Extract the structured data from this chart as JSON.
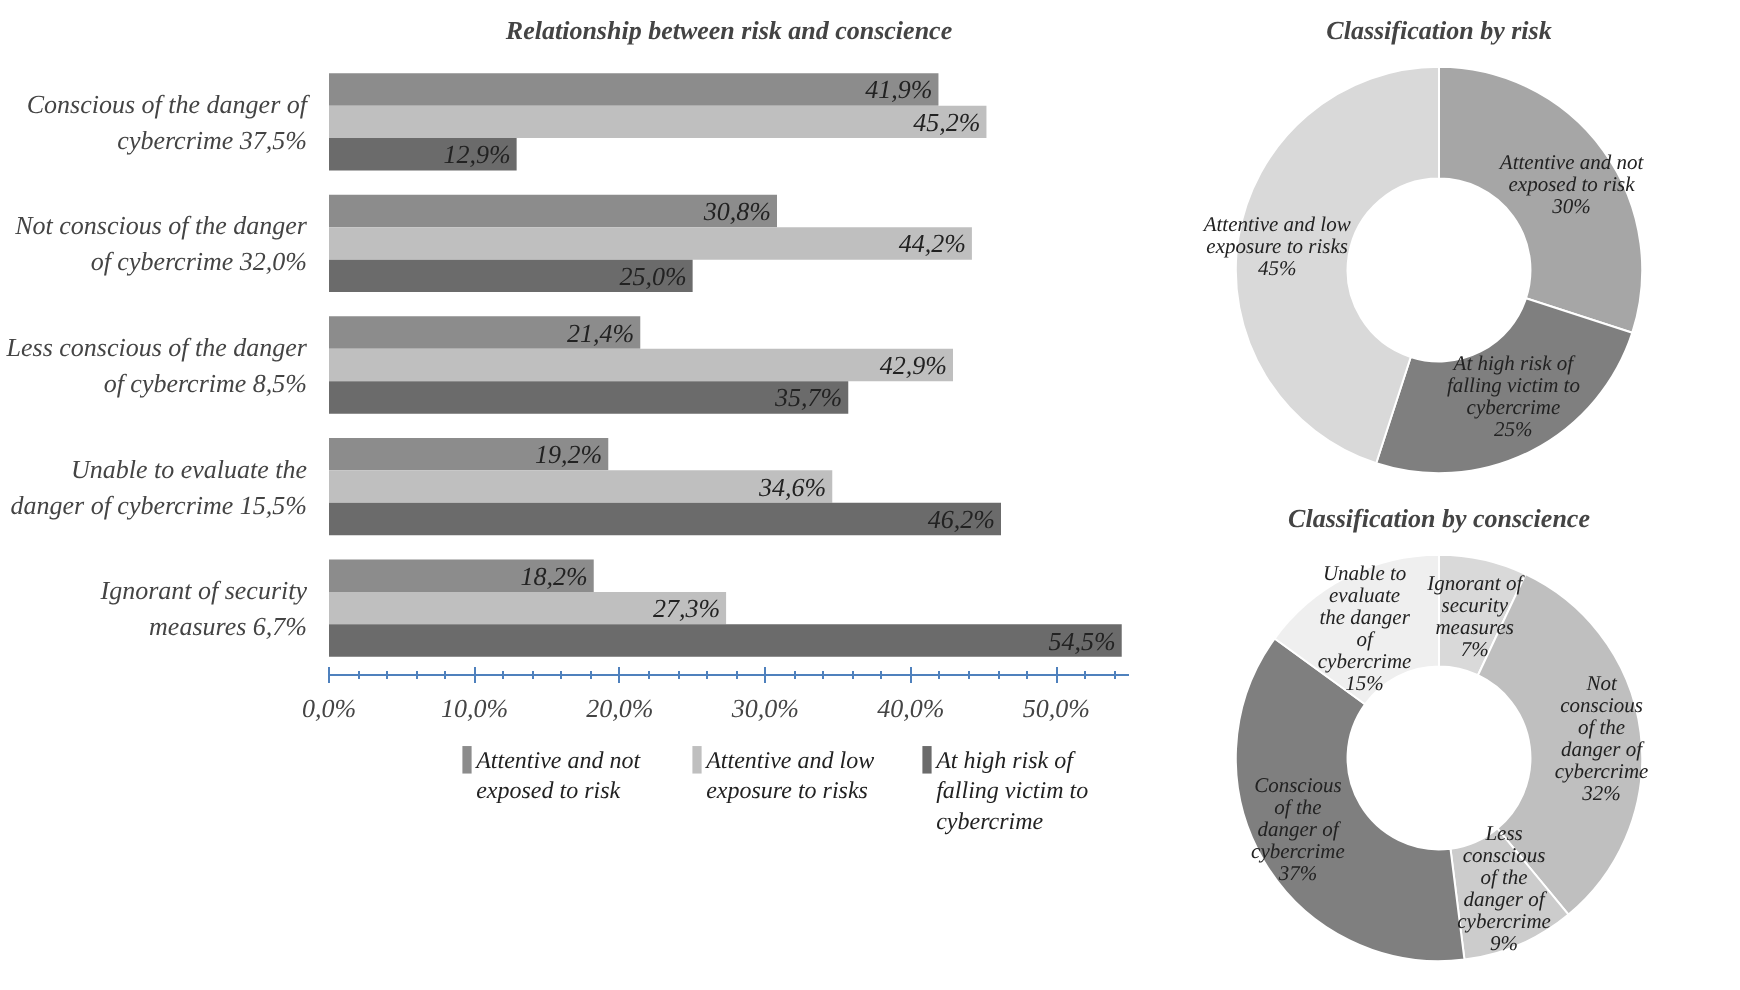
{
  "chart_data": [
    {
      "type": "bar",
      "orientation": "horizontal",
      "title": "Relationship between risk and conscience",
      "categories": [
        "Conscious of the danger of cybercrime 37,5%",
        "Not conscious of the danger of cybercrime 32,0%",
        "Less conscious of the danger of cybercrime 8,5%",
        "Unable to evaluate the danger of cybercrime 15,5%",
        "Ignorant of security measures 6,7%"
      ],
      "series": [
        {
          "name": "Attentive and not exposed to risk",
          "color": "#8c8c8c",
          "values": [
            41.9,
            30.8,
            21.4,
            19.2,
            18.2
          ],
          "value_labels": [
            "41,9%",
            "30,8%",
            "21,4%",
            "19,2%",
            "18,2%"
          ]
        },
        {
          "name": "Attentive and low exposure to risks",
          "color": "#bfbfbf",
          "values": [
            45.2,
            44.2,
            42.9,
            34.6,
            27.3
          ],
          "value_labels": [
            "45,2%",
            "44,2%",
            "42,9%",
            "34,6%",
            "27,3%"
          ]
        },
        {
          "name": "At high risk of falling victim to cybercrime",
          "color": "#6b6b6b",
          "values": [
            12.9,
            25.0,
            35.7,
            46.2,
            54.5
          ],
          "value_labels": [
            "12,9%",
            "25,0%",
            "35,7%",
            "46,2%",
            "54,5%"
          ]
        }
      ],
      "xlim": [
        0,
        55
      ],
      "xticks": [
        {
          "value": 0,
          "label": "0,0%"
        },
        {
          "value": 10,
          "label": "10,0%"
        },
        {
          "value": 20,
          "label": "20,0%"
        },
        {
          "value": 30,
          "label": "30,0%"
        },
        {
          "value": 40,
          "label": "40,0%"
        },
        {
          "value": 50,
          "label": "50,0%"
        }
      ],
      "grid": false,
      "legend": "bottom"
    },
    {
      "type": "donut",
      "title": "Classification by risk",
      "categories": [
        "Attentive and not exposed to risk",
        "At high risk of falling victim to cybercrime",
        "Attentive and low exposure to risks"
      ],
      "values": [
        30,
        25,
        45
      ],
      "value_labels": [
        "30%",
        "25%",
        "45%"
      ],
      "colors": [
        "#a6a6a6",
        "#7f7f7f",
        "#d9d9d9"
      ]
    },
    {
      "type": "donut",
      "title": "Classification by conscience",
      "categories": [
        "Ignorant of security measures",
        "Not conscious of the danger of cybercrime",
        "Less conscious of the danger of cybercrime",
        "Conscious of the danger of cybercrime",
        "Unable to evaluate the danger of cybercrime"
      ],
      "values": [
        7,
        32,
        9,
        37,
        15
      ],
      "value_labels": [
        "7%",
        "32%",
        "9%",
        "37%",
        "15%"
      ],
      "colors": [
        "#d9d9d9",
        "#bfbfbf",
        "#cccccc",
        "#7f7f7f",
        "#efefef"
      ]
    }
  ]
}
